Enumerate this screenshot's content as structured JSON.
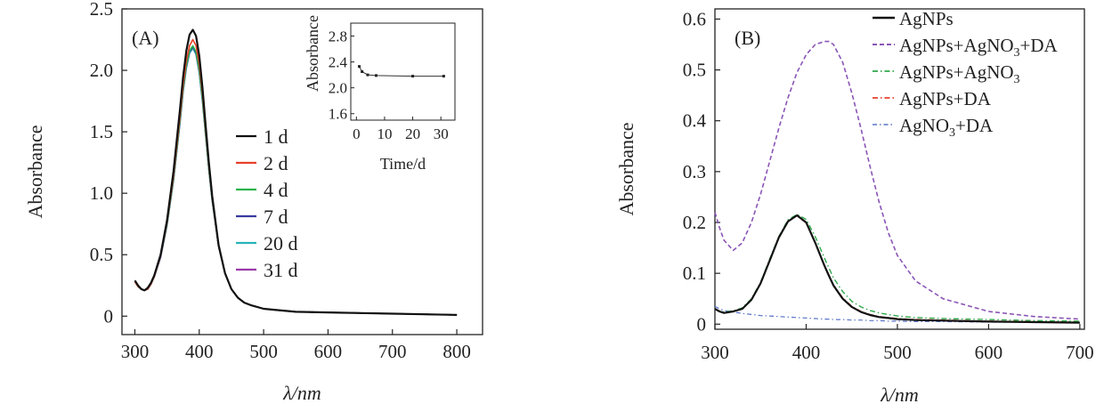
{
  "chart_data": [
    {
      "panel": "(A)",
      "type": "line",
      "xlabel": "λ/nm",
      "ylabel": "Absorbance",
      "xlim": [
        280,
        840
      ],
      "ylim": [
        -0.15,
        2.5
      ],
      "xticks": [
        300,
        400,
        500,
        600,
        700,
        800
      ],
      "yticks": [
        0,
        0.5,
        1.0,
        1.5,
        2.0,
        2.5
      ],
      "ytick_labels": [
        "0",
        "0.5",
        "1.0",
        "1.5",
        "2.0",
        "2.5"
      ],
      "legend_position": "center-right",
      "x": [
        300,
        305,
        310,
        315,
        320,
        325,
        330,
        340,
        350,
        360,
        370,
        375,
        380,
        385,
        390,
        395,
        400,
        405,
        410,
        415,
        420,
        430,
        440,
        450,
        460,
        470,
        480,
        500,
        520,
        550,
        600,
        650,
        700,
        750,
        800
      ],
      "series": [
        {
          "name": "1 d",
          "color": "#111111",
          "values": [
            0.29,
            0.25,
            0.22,
            0.21,
            0.23,
            0.27,
            0.33,
            0.5,
            0.78,
            1.18,
            1.68,
            1.95,
            2.16,
            2.29,
            2.33,
            2.28,
            2.12,
            1.86,
            1.55,
            1.25,
            0.98,
            0.58,
            0.35,
            0.22,
            0.15,
            0.11,
            0.09,
            0.06,
            0.05,
            0.035,
            0.03,
            0.025,
            0.02,
            0.015,
            0.01
          ]
        },
        {
          "name": "2 d",
          "color": "#e8402a",
          "values": [
            0.28,
            0.24,
            0.22,
            0.21,
            0.22,
            0.26,
            0.32,
            0.49,
            0.76,
            1.14,
            1.62,
            1.88,
            2.08,
            2.2,
            2.25,
            2.2,
            2.05,
            1.81,
            1.51,
            1.22,
            0.96,
            0.57,
            0.35,
            0.22,
            0.15,
            0.11,
            0.09,
            0.06,
            0.05,
            0.035,
            0.03,
            0.025,
            0.02,
            0.015,
            0.01
          ]
        },
        {
          "name": "4 d",
          "color": "#2bb34a",
          "values": [
            0.28,
            0.24,
            0.22,
            0.21,
            0.22,
            0.26,
            0.32,
            0.49,
            0.75,
            1.12,
            1.59,
            1.85,
            2.04,
            2.16,
            2.2,
            2.15,
            2.0,
            1.77,
            1.48,
            1.2,
            0.95,
            0.57,
            0.35,
            0.22,
            0.15,
            0.11,
            0.09,
            0.06,
            0.05,
            0.035,
            0.03,
            0.025,
            0.02,
            0.015,
            0.01
          ]
        },
        {
          "name": "7 d",
          "color": "#3a3aa0",
          "values": [
            0.28,
            0.24,
            0.22,
            0.21,
            0.22,
            0.26,
            0.32,
            0.48,
            0.75,
            1.11,
            1.58,
            1.84,
            2.03,
            2.15,
            2.19,
            2.14,
            1.99,
            1.76,
            1.48,
            1.2,
            0.95,
            0.57,
            0.35,
            0.22,
            0.15,
            0.11,
            0.09,
            0.06,
            0.05,
            0.035,
            0.03,
            0.025,
            0.02,
            0.015,
            0.01
          ]
        },
        {
          "name": "20 d",
          "color": "#27b3b8",
          "values": [
            0.28,
            0.24,
            0.22,
            0.21,
            0.22,
            0.26,
            0.32,
            0.48,
            0.74,
            1.11,
            1.57,
            1.83,
            2.02,
            2.14,
            2.18,
            2.13,
            1.98,
            1.75,
            1.47,
            1.19,
            0.94,
            0.57,
            0.35,
            0.22,
            0.15,
            0.11,
            0.09,
            0.06,
            0.05,
            0.035,
            0.03,
            0.025,
            0.02,
            0.015,
            0.01
          ]
        },
        {
          "name": "31 d",
          "color": "#9b3aa8",
          "values": [
            0.28,
            0.24,
            0.22,
            0.21,
            0.22,
            0.26,
            0.32,
            0.48,
            0.74,
            1.11,
            1.57,
            1.83,
            2.02,
            2.14,
            2.18,
            2.13,
            1.98,
            1.75,
            1.47,
            1.19,
            0.94,
            0.57,
            0.35,
            0.22,
            0.15,
            0.11,
            0.09,
            0.06,
            0.05,
            0.035,
            0.03,
            0.025,
            0.02,
            0.015,
            0.01
          ]
        }
      ],
      "inset": {
        "type": "scatter-line",
        "xlabel": "Time/d",
        "ylabel": "Absorbance",
        "xlim": [
          -2,
          35
        ],
        "ylim": [
          1.5,
          3.0
        ],
        "xticks": [
          0,
          10,
          20,
          30
        ],
        "xtick_labels": [
          "0",
          "10",
          "20",
          "30"
        ],
        "yticks": [
          1.6,
          2.0,
          2.4,
          2.8
        ],
        "ytick_labels": [
          "1.6",
          "2.0",
          "2.4",
          "2.8"
        ],
        "x": [
          1,
          2,
          4,
          7,
          20,
          31
        ],
        "values": [
          2.33,
          2.25,
          2.2,
          2.19,
          2.18,
          2.18
        ]
      }
    },
    {
      "panel": "(B)",
      "type": "line",
      "xlabel": "λ/nm",
      "ylabel": "Absorbance",
      "xlim": [
        300,
        705
      ],
      "ylim": [
        -0.01,
        0.62
      ],
      "xticks": [
        300,
        400,
        500,
        600,
        700
      ],
      "yticks": [
        0,
        0.1,
        0.2,
        0.3,
        0.4,
        0.5,
        0.6
      ],
      "ytick_labels": [
        "0",
        "0.1",
        "0.2",
        "0.3",
        "0.4",
        "0.5",
        "0.6"
      ],
      "legend_position": "top-right",
      "x": [
        300,
        305,
        310,
        320,
        330,
        340,
        350,
        360,
        370,
        380,
        390,
        400,
        410,
        420,
        425,
        430,
        440,
        450,
        460,
        470,
        480,
        490,
        500,
        520,
        550,
        600,
        650,
        700
      ],
      "series": [
        {
          "name": "AgNPs",
          "sub": "",
          "tail": "",
          "color": "#111111",
          "dash": "none",
          "width": 2.2,
          "values": [
            0.03,
            0.025,
            0.022,
            0.025,
            0.03,
            0.048,
            0.08,
            0.125,
            0.17,
            0.202,
            0.214,
            0.2,
            0.16,
            0.115,
            0.095,
            0.076,
            0.05,
            0.034,
            0.024,
            0.018,
            0.014,
            0.012,
            0.01,
            0.008,
            0.007,
            0.005,
            0.004,
            0.003
          ]
        },
        {
          "name": "AgNPs+AgNO",
          "sub": "3",
          "tail": "+DA",
          "color": "#8a55b6",
          "dash": "5,3",
          "width": 1.6,
          "values": [
            0.22,
            0.19,
            0.165,
            0.145,
            0.16,
            0.2,
            0.255,
            0.32,
            0.385,
            0.445,
            0.495,
            0.53,
            0.55,
            0.556,
            0.556,
            0.55,
            0.515,
            0.455,
            0.385,
            0.31,
            0.24,
            0.18,
            0.135,
            0.085,
            0.05,
            0.025,
            0.015,
            0.01
          ]
        },
        {
          "name": "AgNPs+AgNO",
          "sub": "3",
          "tail": "",
          "color": "#2ea84a",
          "dash": "6,3,1.5,3",
          "width": 1.4,
          "values": [
            0.03,
            0.026,
            0.024,
            0.026,
            0.032,
            0.05,
            0.082,
            0.128,
            0.172,
            0.205,
            0.216,
            0.206,
            0.172,
            0.13,
            0.11,
            0.091,
            0.064,
            0.045,
            0.034,
            0.027,
            0.022,
            0.019,
            0.016,
            0.013,
            0.011,
            0.009,
            0.007,
            0.006
          ]
        },
        {
          "name": "AgNPs+DA",
          "sub": "",
          "tail": "",
          "color": "#e8402a",
          "dash": "6,3,1.5,3",
          "width": 1.4,
          "values": [
            0.03,
            0.026,
            0.023,
            0.025,
            0.031,
            0.049,
            0.081,
            0.126,
            0.171,
            0.203,
            0.213,
            0.199,
            0.16,
            0.116,
            0.096,
            0.077,
            0.052,
            0.035,
            0.025,
            0.019,
            0.015,
            0.013,
            0.011,
            0.009,
            0.008,
            0.006,
            0.005,
            0.004
          ]
        },
        {
          "name": "AgNO",
          "sub": "3",
          "tail": "+DA",
          "color": "#5a74c8",
          "dash": "5,3,1.5,3",
          "width": 1.2,
          "values": [
            0.035,
            0.03,
            0.027,
            0.024,
            0.021,
            0.019,
            0.017,
            0.016,
            0.015,
            0.014,
            0.013,
            0.012,
            0.011,
            0.01,
            0.01,
            0.009,
            0.009,
            0.008,
            0.008,
            0.007,
            0.007,
            0.006,
            0.006,
            0.005,
            0.005,
            0.004,
            0.004,
            0.003
          ]
        }
      ]
    }
  ]
}
